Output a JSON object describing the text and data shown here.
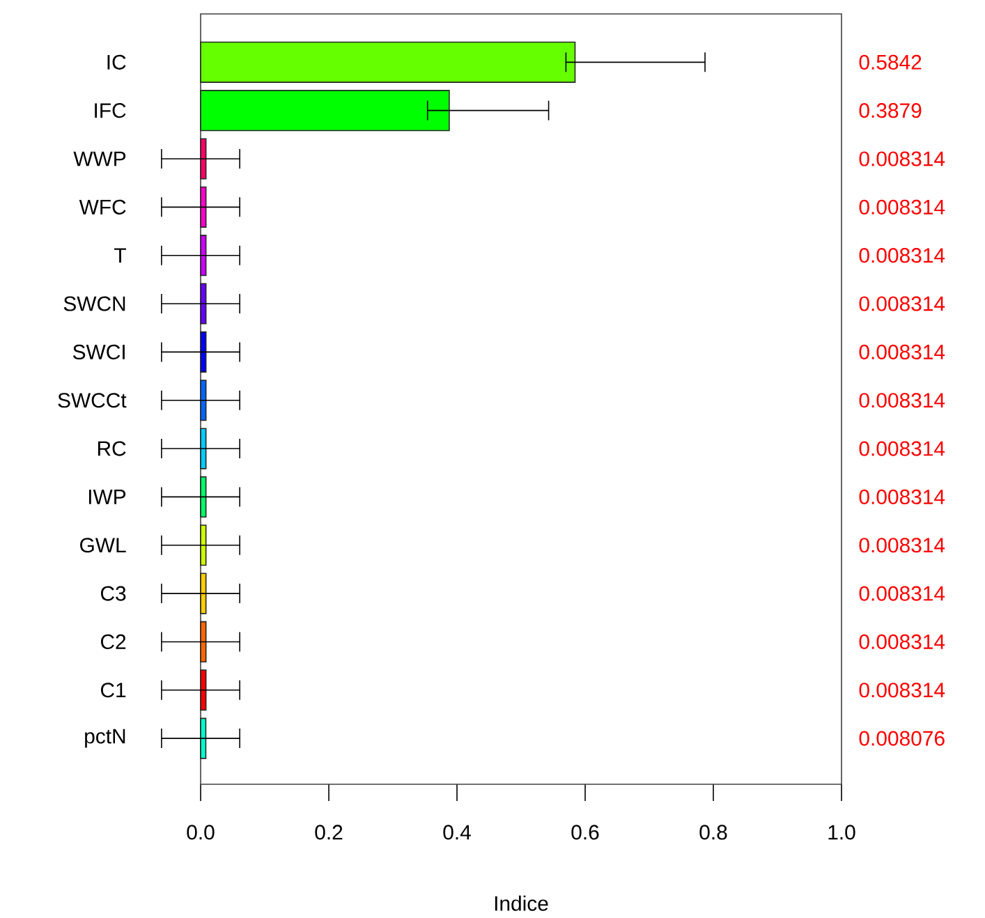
{
  "chart_data": {
    "type": "bar",
    "orientation": "horizontal",
    "xlabel": "Indice",
    "categories": [
      "IC",
      "IFC",
      "WWP",
      "WFC",
      "T",
      "SWCN",
      "SWCI",
      "SWCCt",
      "RC",
      "IWP",
      "GWL",
      "C3",
      "C2",
      "C1",
      "pctN"
    ],
    "values": [
      0.5842,
      0.3879,
      0.008314,
      0.008314,
      0.008314,
      0.008314,
      0.008314,
      0.008314,
      0.008314,
      0.008314,
      0.008314,
      0.008314,
      0.008314,
      0.008314,
      0.008076
    ],
    "colors": [
      "#66ff00",
      "#00ff00",
      "#ff0066",
      "#ff00cc",
      "#cc00ff",
      "#6600ff",
      "#0000ff",
      "#0066ff",
      "#00ccff",
      "#00ff66",
      "#ccff00",
      "#ffcc00",
      "#ff6600",
      "#ff0000",
      "#00ffcc"
    ],
    "errors": [
      [
        0.57,
        0.787
      ],
      [
        0.354,
        0.543
      ],
      [
        -0.061,
        0.061
      ],
      [
        -0.061,
        0.061
      ],
      [
        -0.061,
        0.061
      ],
      [
        -0.061,
        0.061
      ],
      [
        -0.061,
        0.061
      ],
      [
        -0.061,
        0.061
      ],
      [
        -0.061,
        0.061
      ],
      [
        -0.061,
        0.061
      ],
      [
        -0.061,
        0.061
      ],
      [
        -0.061,
        0.061
      ],
      [
        -0.061,
        0.061
      ],
      [
        -0.061,
        0.061
      ],
      [
        -0.061,
        0.061
      ]
    ],
    "annotations": [
      "0.5842",
      "0.3879",
      "0.008314",
      "0.008314",
      "0.008314",
      "0.008314",
      "0.008314",
      "0.008314",
      "0.008314",
      "0.008314",
      "0.008314",
      "0.008314",
      "0.008314",
      "0.008314",
      "0.008076"
    ],
    "xlim": [
      0,
      1.0
    ],
    "xticks": [
      {
        "value": 0,
        "label": "0.0"
      },
      0.2,
      0.4,
      0.6,
      0.8,
      {
        "value": 1,
        "label": "1.0"
      }
    ]
  }
}
